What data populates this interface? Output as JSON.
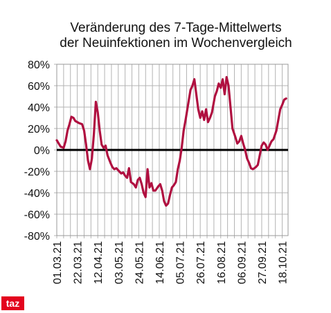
{
  "chart_data": {
    "type": "line",
    "title": [
      "Veränderung des 7-Tage-Mittelwerts",
      "der Neuinfektionen im Wochenvergleich"
    ],
    "xlabel": "",
    "ylabel": "",
    "ylim": [
      -80,
      80
    ],
    "yticks": [
      "-80%",
      "-60%",
      "-40%",
      "-20%",
      "0%",
      "20%",
      "40%",
      "60%",
      "80%"
    ],
    "ytick_values": [
      -80,
      -60,
      -40,
      -20,
      0,
      20,
      40,
      60,
      80
    ],
    "xticks": [
      "01.03.21",
      "22.03.21",
      "12.04.21",
      "03.05.21",
      "24.05.21",
      "14.06.21",
      "05.07.21",
      "26.07.21",
      "16.08.21",
      "06.09.21",
      "27.09.21",
      "18.10.21"
    ],
    "grid": true,
    "zero_line": true,
    "series": [
      {
        "color": "#b01040",
        "points": [
          [
            "2021-03-01",
            9
          ],
          [
            "2021-03-03",
            6
          ],
          [
            "2021-03-05",
            3
          ],
          [
            "2021-03-08",
            2
          ],
          [
            "2021-03-10",
            8
          ],
          [
            "2021-03-12",
            18
          ],
          [
            "2021-03-14",
            24
          ],
          [
            "2021-03-16",
            31
          ],
          [
            "2021-03-18",
            30
          ],
          [
            "2021-03-20",
            27
          ],
          [
            "2021-03-22",
            26
          ],
          [
            "2021-03-24",
            25
          ],
          [
            "2021-03-27",
            24
          ],
          [
            "2021-03-29",
            18
          ],
          [
            "2021-03-31",
            5
          ],
          [
            "2021-04-02",
            -10
          ],
          [
            "2021-04-04",
            -18
          ],
          [
            "2021-04-06",
            -8
          ],
          [
            "2021-04-08",
            15
          ],
          [
            "2021-04-10",
            45
          ],
          [
            "2021-04-12",
            35
          ],
          [
            "2021-04-14",
            18
          ],
          [
            "2021-04-16",
            5
          ],
          [
            "2021-04-18",
            2
          ],
          [
            "2021-04-20",
            4
          ],
          [
            "2021-04-22",
            -5
          ],
          [
            "2021-04-25",
            -12
          ],
          [
            "2021-04-27",
            -16
          ],
          [
            "2021-04-29",
            -18
          ],
          [
            "2021-05-01",
            -17
          ],
          [
            "2021-05-04",
            -20
          ],
          [
            "2021-05-06",
            -22
          ],
          [
            "2021-05-08",
            -21
          ],
          [
            "2021-05-10",
            -24
          ],
          [
            "2021-05-12",
            -26
          ],
          [
            "2021-05-14",
            -17
          ],
          [
            "2021-05-16",
            -30
          ],
          [
            "2021-05-19",
            -32
          ],
          [
            "2021-05-21",
            -35
          ],
          [
            "2021-05-23",
            -28
          ],
          [
            "2021-05-25",
            -26
          ],
          [
            "2021-05-27",
            -32
          ],
          [
            "2021-05-29",
            -40
          ],
          [
            "2021-05-31",
            -44
          ],
          [
            "2021-06-02",
            -18
          ],
          [
            "2021-06-04",
            -35
          ],
          [
            "2021-06-06",
            -31
          ],
          [
            "2021-06-08",
            -38
          ],
          [
            "2021-06-10",
            -38
          ],
          [
            "2021-06-13",
            -34
          ],
          [
            "2021-06-15",
            -32
          ],
          [
            "2021-06-17",
            -38
          ],
          [
            "2021-06-19",
            -48
          ],
          [
            "2021-06-21",
            -52
          ],
          [
            "2021-06-23",
            -50
          ],
          [
            "2021-06-25",
            -42
          ],
          [
            "2021-06-27",
            -35
          ],
          [
            "2021-06-29",
            -33
          ],
          [
            "2021-07-01",
            -30
          ],
          [
            "2021-07-03",
            -18
          ],
          [
            "2021-07-05",
            -10
          ],
          [
            "2021-07-07",
            2
          ],
          [
            "2021-07-09",
            18
          ],
          [
            "2021-07-11",
            28
          ],
          [
            "2021-07-14",
            45
          ],
          [
            "2021-07-16",
            56
          ],
          [
            "2021-07-18",
            60
          ],
          [
            "2021-07-20",
            66
          ],
          [
            "2021-07-22",
            52
          ],
          [
            "2021-07-24",
            38
          ],
          [
            "2021-07-26",
            30
          ],
          [
            "2021-07-28",
            36
          ],
          [
            "2021-07-30",
            28
          ],
          [
            "2021-08-01",
            38
          ],
          [
            "2021-08-03",
            26
          ],
          [
            "2021-08-05",
            30
          ],
          [
            "2021-08-07",
            35
          ],
          [
            "2021-08-10",
            50
          ],
          [
            "2021-08-12",
            55
          ],
          [
            "2021-08-14",
            62
          ],
          [
            "2021-08-16",
            58
          ],
          [
            "2021-08-18",
            66
          ],
          [
            "2021-08-20",
            52
          ],
          [
            "2021-08-22",
            68
          ],
          [
            "2021-08-24",
            60
          ],
          [
            "2021-08-26",
            40
          ],
          [
            "2021-08-28",
            20
          ],
          [
            "2021-08-31",
            12
          ],
          [
            "2021-09-02",
            6
          ],
          [
            "2021-09-04",
            8
          ],
          [
            "2021-09-06",
            13
          ],
          [
            "2021-09-08",
            6
          ],
          [
            "2021-09-10",
            0
          ],
          [
            "2021-09-12",
            -8
          ],
          [
            "2021-09-14",
            -12
          ],
          [
            "2021-09-16",
            -17
          ],
          [
            "2021-09-18",
            -18
          ],
          [
            "2021-09-21",
            -16
          ],
          [
            "2021-09-23",
            -14
          ],
          [
            "2021-09-25",
            -5
          ],
          [
            "2021-09-27",
            4
          ],
          [
            "2021-09-29",
            7
          ],
          [
            "2021-10-01",
            5
          ],
          [
            "2021-10-03",
            0
          ],
          [
            "2021-10-05",
            4
          ],
          [
            "2021-10-07",
            8
          ],
          [
            "2021-10-09",
            10
          ],
          [
            "2021-10-12",
            18
          ],
          [
            "2021-10-14",
            28
          ],
          [
            "2021-10-16",
            38
          ],
          [
            "2021-10-18",
            42
          ],
          [
            "2021-10-20",
            47
          ],
          [
            "2021-10-22",
            48
          ]
        ]
      }
    ]
  },
  "branding": {
    "logo_text": "taz",
    "logo_color": "#e3041e"
  }
}
